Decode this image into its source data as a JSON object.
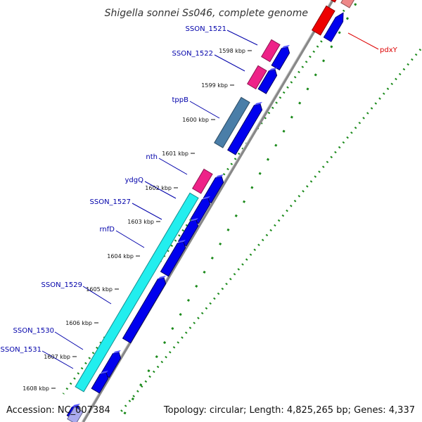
{
  "title": "Shigella sonnei Ss046, complete genome",
  "footer": {
    "accession": "Accession: NC_007384",
    "topology": "Topology: circular; Length: 4,825,265 bp; Genes: 4,337"
  },
  "ticks": [
    "1598 kbp",
    "1599 kbp",
    "1600 kbp",
    "1601 kbp",
    "1602 kbp",
    "1603 kbp",
    "1604 kbp",
    "1605 kbp",
    "1606 kbp",
    "1607 kbp",
    "1608 kbp"
  ],
  "gene_labels": [
    "SSON_1521",
    "SSON_1522",
    "tppB",
    "nth",
    "ydgQ",
    "SSON_1527",
    "rnfD",
    "SSON_1529",
    "SSON_1530",
    "SSON_1531",
    "pdxY"
  ],
  "colors": {
    "label_blue": "#0000aa",
    "label_red": "#dd0000",
    "cds_blue": "#0000ee",
    "pink": "#ee2288",
    "steel_blue": "#4a7ea8",
    "cyan": "#22eeee",
    "red": "#ee0000",
    "light_red": "#ee8888",
    "dots_green": "#1b8a1b"
  }
}
